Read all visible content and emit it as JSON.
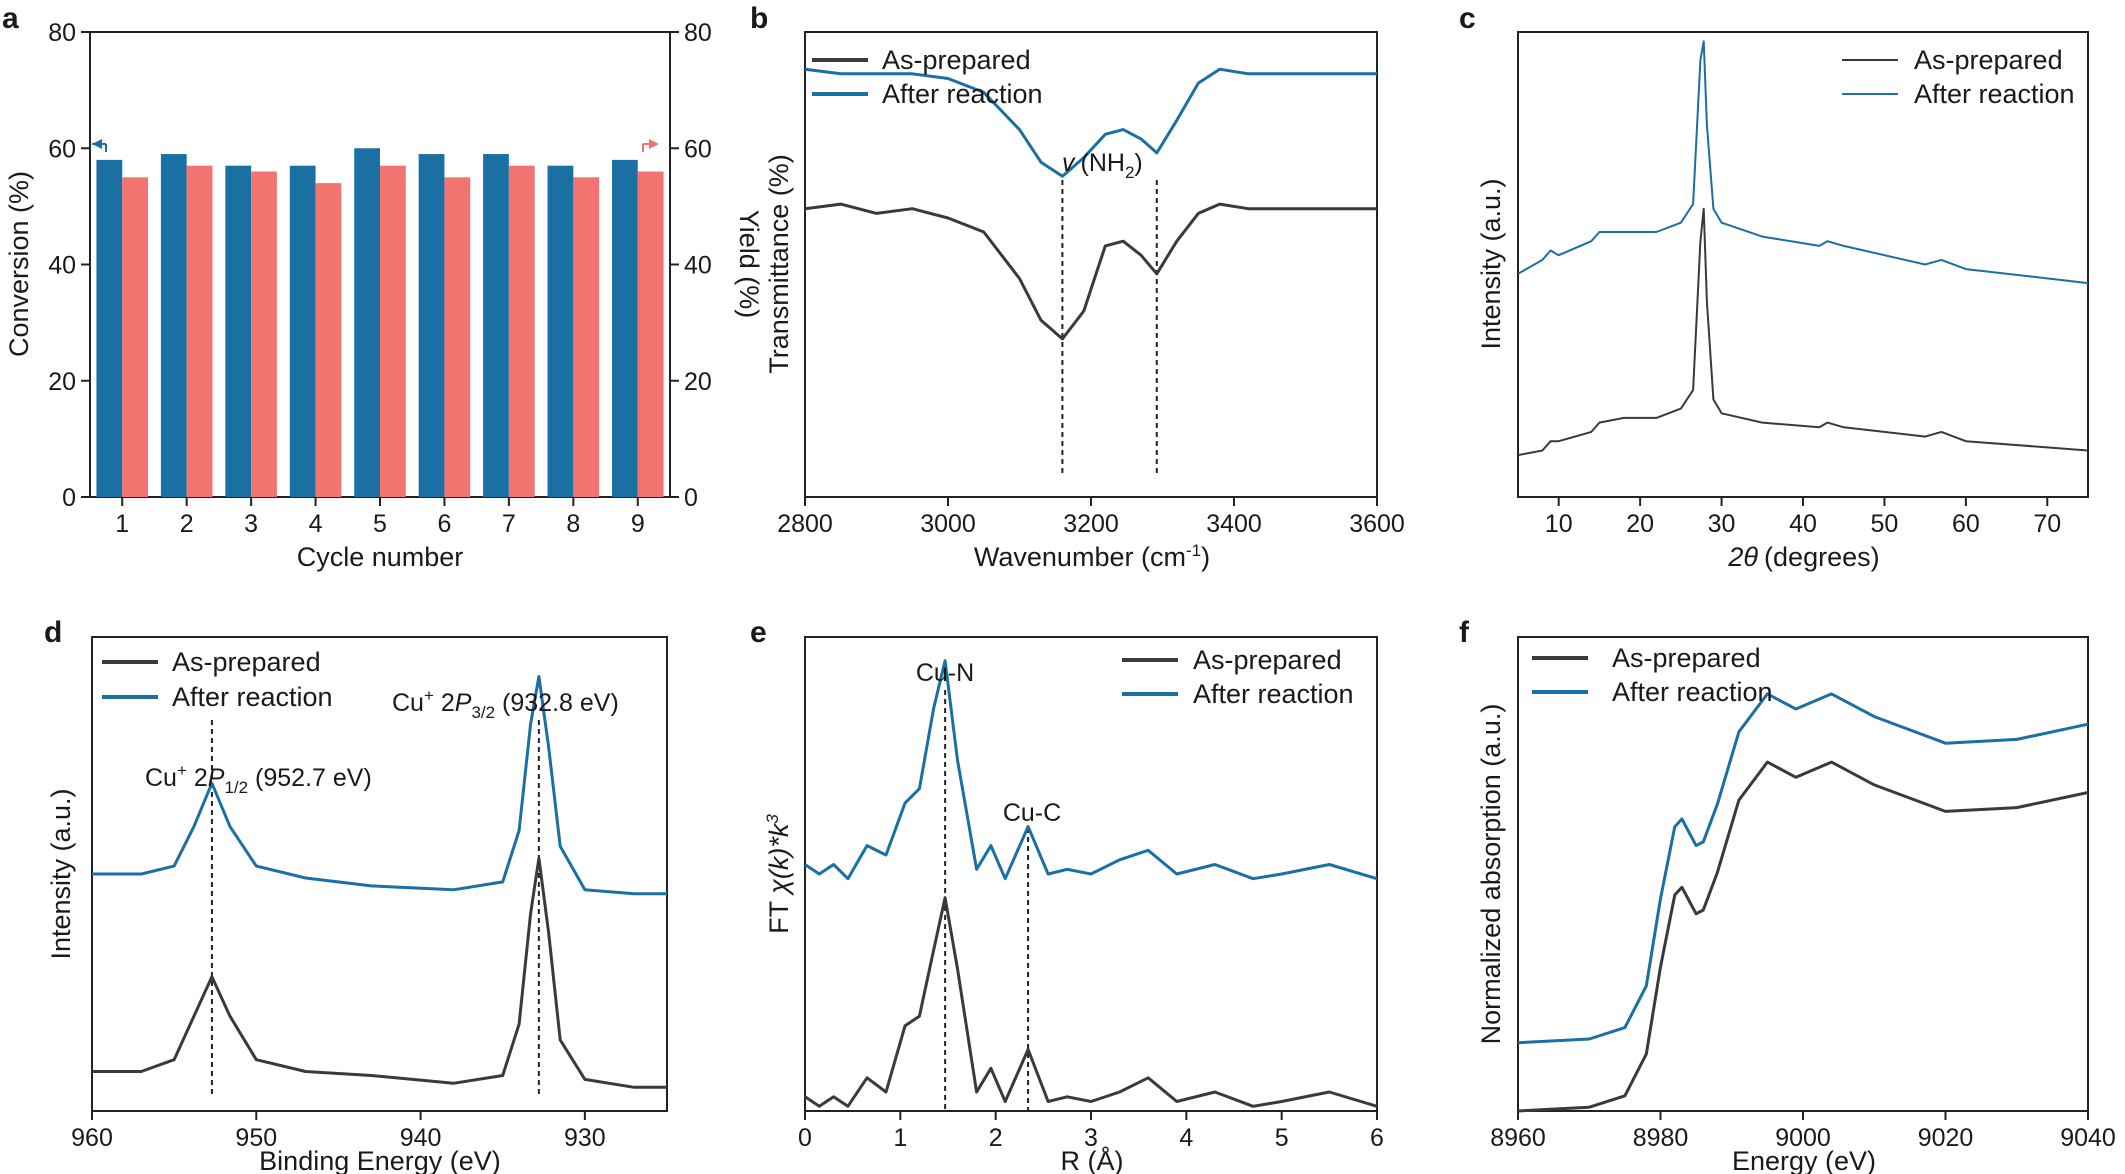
{
  "colors": {
    "as_prepared": "#3a3a3a",
    "after_reaction": "#1a6fa3",
    "conversion": "#1a6fa3",
    "yield": "#f27370"
  },
  "chart_data": [
    {
      "panel": "a",
      "type": "bar",
      "xlabel": "Cycle number",
      "ylabel": "Conversion (%)",
      "y2label": "Yield (%)",
      "ylim": [
        0,
        80
      ],
      "y2lim": [
        0,
        80
      ],
      "yticks": [
        "0",
        "20",
        "40",
        "60",
        "80"
      ],
      "categories": [
        "1",
        "2",
        "3",
        "4",
        "5",
        "6",
        "7",
        "8",
        "9"
      ],
      "series": [
        {
          "name": "Conversion",
          "axis": "left",
          "values": [
            58,
            59,
            57,
            57,
            60,
            59,
            59,
            57,
            58
          ]
        },
        {
          "name": "Yield",
          "axis": "right",
          "values": [
            55,
            57,
            56,
            54,
            57,
            55,
            57,
            55,
            56
          ]
        }
      ]
    },
    {
      "panel": "b",
      "type": "line",
      "xlabel": "Wavenumber (cm",
      "xlabel_sup": "-1",
      "xlabel_end": ")",
      "ylabel": "Transmittance (%)",
      "xlim": [
        2800,
        3600
      ],
      "xticks": [
        "2800",
        "3000",
        "3200",
        "3400",
        "3600"
      ],
      "annotation": {
        "prefix": "v",
        "text": "(NH",
        "sub": "2",
        "end": ")"
      },
      "peaks": [
        3160,
        3292
      ],
      "legend": [
        "As-prepared",
        "After reaction"
      ],
      "series": [
        {
          "name": "As-prepared",
          "x": [
            2800,
            2850,
            2900,
            2950,
            3000,
            3050,
            3100,
            3130,
            3160,
            3190,
            3220,
            3245,
            3270,
            3292,
            3320,
            3350,
            3380,
            3420,
            3500,
            3600
          ],
          "y": [
            62,
            63,
            61,
            62,
            60,
            57,
            47,
            38,
            34,
            40,
            54,
            55,
            52,
            48,
            55,
            61,
            63,
            62,
            62,
            62
          ]
        },
        {
          "name": "After reaction",
          "x": [
            2800,
            2850,
            2900,
            2950,
            3000,
            3050,
            3100,
            3130,
            3160,
            3190,
            3220,
            3245,
            3270,
            3292,
            3320,
            3350,
            3380,
            3420,
            3500,
            3600
          ],
          "y": [
            92,
            91,
            91,
            91,
            90,
            87,
            79,
            72,
            69,
            73,
            78,
            79,
            77,
            74,
            81,
            89,
            92,
            91,
            91,
            91
          ]
        }
      ]
    },
    {
      "panel": "c",
      "type": "line",
      "xlabel": "(degrees)",
      "xlabel_theta": "2θ",
      "ylabel": "Intensity (a.u.)",
      "xlim": [
        5,
        75
      ],
      "xticks": [
        "10",
        "20",
        "30",
        "40",
        "50",
        "60",
        "70"
      ],
      "legend": [
        "As-prepared",
        "After reaction"
      ],
      "series": [
        {
          "name": "As-prepared",
          "x": [
            5,
            8,
            9,
            10,
            14,
            15,
            18,
            22,
            25,
            26.5,
            27.4,
            27.8,
            28.2,
            29,
            30,
            35,
            42,
            43,
            45,
            55,
            57,
            60,
            75
          ],
          "y": [
            9,
            10,
            12,
            12,
            14,
            16,
            17,
            17,
            19,
            23,
            55,
            62,
            42,
            21,
            18,
            16,
            15,
            16,
            15,
            13,
            14,
            12,
            10
          ]
        },
        {
          "name": "After reaction",
          "x": [
            5,
            8,
            9,
            10,
            14,
            15,
            18,
            22,
            25,
            26.5,
            27.4,
            27.8,
            28.2,
            29,
            30,
            35,
            42,
            43,
            45,
            55,
            57,
            60,
            75
          ],
          "y": [
            48,
            51,
            53,
            52,
            55,
            57,
            57,
            57,
            59,
            63,
            94,
            98,
            80,
            62,
            59,
            56,
            54,
            55,
            54,
            50,
            51,
            49,
            46
          ]
        }
      ]
    },
    {
      "panel": "d",
      "type": "line",
      "xlabel": "Binding Energy (eV)",
      "ylabel": "Intensity (a.u.)",
      "xlim": [
        960,
        925
      ],
      "xticks": [
        "960",
        "950",
        "940",
        "930"
      ],
      "annotations": [
        {
          "text": "Cu",
          "sup": "+",
          "mid": " 2",
          "italic": "P",
          "sub": "3/2",
          "end": " (932.8 eV)"
        },
        {
          "text": "Cu",
          "sup": "+",
          "mid": " 2",
          "italic": "P",
          "sub": "1/2",
          "end": " (952.7 eV)"
        }
      ],
      "peaks": [
        952.7,
        932.8
      ],
      "legend": [
        "As-prepared",
        "After reaction"
      ],
      "series": [
        {
          "name": "As-prepared",
          "x": [
            960,
            957,
            955,
            953.8,
            952.7,
            951.6,
            950,
            947,
            943,
            938,
            935,
            934,
            933.3,
            932.8,
            932.2,
            931.5,
            930,
            927,
            925
          ],
          "y": [
            10,
            10,
            13,
            24,
            34,
            24,
            13,
            10,
            9,
            7,
            9,
            22,
            50,
            64,
            45,
            18,
            8,
            6,
            6
          ]
        },
        {
          "name": "After reaction",
          "x": [
            960,
            957,
            955,
            953.8,
            952.7,
            951.6,
            950,
            947,
            943,
            938,
            935,
            934,
            933.3,
            932.8,
            932.2,
            931.5,
            930,
            927,
            925
          ],
          "y": [
            60,
            60,
            62,
            72,
            83,
            72,
            62,
            59,
            57,
            56,
            58,
            71,
            98,
            110,
            92,
            67,
            56,
            55,
            55
          ]
        }
      ]
    },
    {
      "panel": "e",
      "type": "line",
      "xlabel": "R (Å)",
      "ylabel_prefix": "FT ",
      "ylabel_chi": "χ(k)*k",
      "ylabel_sup": "3",
      "xlim": [
        0,
        6
      ],
      "xticks": [
        "0",
        "1",
        "2",
        "3",
        "4",
        "5",
        "6"
      ],
      "annotations": [
        "Cu-N",
        "Cu-C"
      ],
      "peaks": [
        1.47,
        2.34
      ],
      "legend": [
        "As-prepared",
        "After reaction"
      ],
      "series": [
        {
          "name": "As-prepared",
          "x": [
            0,
            0.15,
            0.3,
            0.45,
            0.65,
            0.85,
            1.05,
            1.2,
            1.35,
            1.47,
            1.6,
            1.8,
            1.95,
            2.1,
            2.34,
            2.55,
            2.75,
            3.0,
            3.3,
            3.6,
            3.9,
            4.3,
            4.7,
            5.0,
            5.5,
            6.0
          ],
          "y": [
            3,
            1,
            3,
            1,
            7,
            4,
            18,
            20,
            34,
            45,
            30,
            4,
            9,
            2,
            13,
            2,
            3,
            2,
            4,
            7,
            2,
            4,
            1,
            2,
            4,
            1
          ]
        },
        {
          "name": "After reaction",
          "x": [
            0,
            0.15,
            0.3,
            0.45,
            0.65,
            0.85,
            1.05,
            1.2,
            1.35,
            1.47,
            1.6,
            1.8,
            1.95,
            2.1,
            2.34,
            2.55,
            2.75,
            3.0,
            3.3,
            3.6,
            3.9,
            4.3,
            4.7,
            5.0,
            5.5,
            6.0
          ],
          "y": [
            52,
            50,
            52,
            49,
            56,
            54,
            65,
            68,
            85,
            95,
            74,
            51,
            56,
            49,
            60,
            50,
            51,
            50,
            53,
            55,
            50,
            52,
            49,
            50,
            52,
            49
          ]
        }
      ]
    },
    {
      "panel": "f",
      "type": "line",
      "xlabel": "Energy (eV)",
      "ylabel": "Normalized absorption (a.u.)",
      "xlim": [
        8960,
        9040
      ],
      "xticks": [
        "8960",
        "8980",
        "9000",
        "9020",
        "9040"
      ],
      "legend": [
        "As-prepared",
        "After reaction"
      ],
      "series": [
        {
          "name": "As-prepared",
          "x": [
            8960,
            8970,
            8975,
            8978,
            8980,
            8982,
            8983,
            8985,
            8986,
            8988,
            8991,
            8995,
            8999,
            9004,
            9010,
            9020,
            9030,
            9040
          ],
          "y": [
            0,
            1,
            4,
            15,
            38,
            57,
            59,
            52,
            53,
            63,
            82,
            92,
            88,
            92,
            86,
            79,
            80,
            84
          ]
        },
        {
          "name": "After reaction",
          "x": [
            8960,
            8970,
            8975,
            8978,
            8980,
            8982,
            8983,
            8985,
            8986,
            8988,
            8991,
            8995,
            8999,
            9004,
            9010,
            9020,
            9030,
            9040
          ],
          "y": [
            18,
            19,
            22,
            33,
            56,
            75,
            77,
            70,
            71,
            81,
            100,
            110,
            106,
            110,
            104,
            97,
            98,
            102
          ]
        }
      ]
    }
  ]
}
